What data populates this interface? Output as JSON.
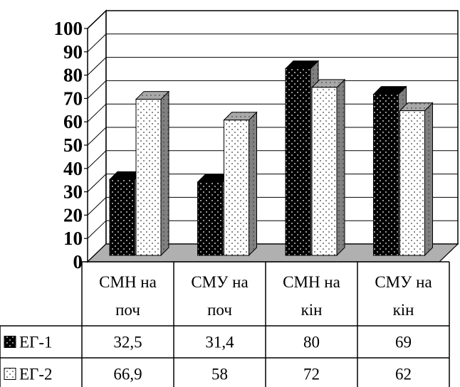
{
  "chart_data": {
    "type": "bar",
    "categories": [
      {
        "line1": "СМН на",
        "line2": "поч"
      },
      {
        "line1": "СМУ на",
        "line2": "поч"
      },
      {
        "line1": "СМН на",
        "line2": "кін"
      },
      {
        "line1": "СМУ на",
        "line2": "кін"
      }
    ],
    "series": [
      {
        "name": "ЕГ-1",
        "values": [
          32.5,
          31.4,
          80,
          69
        ],
        "labels": [
          "32,5",
          "31,4",
          "80",
          "69"
        ],
        "pattern": "black-with-dots"
      },
      {
        "name": "ЕГ-2",
        "values": [
          66.9,
          58,
          72,
          62
        ],
        "labels": [
          "66,9",
          "58",
          "72",
          "62"
        ],
        "pattern": "white-with-dots"
      }
    ],
    "yticks": [
      "0",
      "10",
      "20",
      "30",
      "40",
      "50",
      "60",
      "70",
      "80",
      "90",
      "100"
    ],
    "ylim": [
      0,
      100
    ],
    "grid": true,
    "data_table": true,
    "style": "3d-columns",
    "colors": {
      "floor": "#b0b0b0",
      "side": "#808080"
    }
  }
}
